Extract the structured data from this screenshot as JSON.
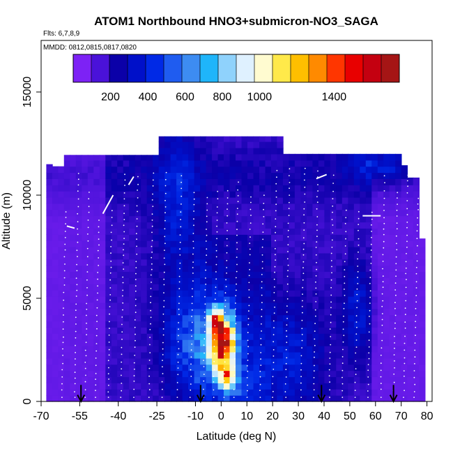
{
  "chart_data": {
    "type": "heatmap",
    "title": "ATOM1 Northbound HNO3+submicron-NO3_SAGA",
    "subtitle_flights": "Flts: 6,7,8,9",
    "subtitle_dates": "MMDD: 0812,0815,0817,0820",
    "xlabel": "Latitude (deg N)",
    "ylabel": "Altitude (m)",
    "xlim": [
      -70,
      82
    ],
    "ylim": [
      0,
      17500
    ],
    "x_ticks": [
      -70,
      -55,
      -40,
      -25,
      -10,
      0,
      10,
      20,
      30,
      40,
      50,
      60,
      70,
      80
    ],
    "x_tick_labels": [
      "-70",
      "-55",
      "-40",
      "-25",
      "-10",
      "0",
      "10",
      "20",
      "30",
      "40",
      "50",
      "60",
      "70",
      "80"
    ],
    "y_ticks": [
      0,
      5000,
      10000,
      15000
    ],
    "y_tick_labels": [
      "0",
      "5000",
      "10000",
      "15000"
    ],
    "colorbar": {
      "range": [
        0,
        1750
      ],
      "tick_values": [
        200,
        400,
        600,
        800,
        1000,
        1400
      ],
      "tick_labels": [
        "200",
        "400",
        "600",
        "800",
        "1000",
        "1400"
      ],
      "colors": [
        "#7d22f5",
        "#4a12d9",
        "#0b00a8",
        "#0010c9",
        "#0029e6",
        "#1f5cf0",
        "#3d8cf2",
        "#1fb5fa",
        "#8fd2fc",
        "#dff1ff",
        "#fffbd0",
        "#ffe94a",
        "#ffbf00",
        "#ff8a00",
        "#ff3600",
        "#e80000",
        "#c40010",
        "#a51515"
      ]
    },
    "arrow_latitudes": [
      -54.5,
      -8,
      39,
      67
    ],
    "profile_latitudes": [
      -62,
      -57,
      -53,
      -49,
      -44,
      -39,
      -34,
      -28,
      -23,
      -17,
      -12,
      -7,
      -3,
      1,
      5,
      10,
      15,
      20,
      25,
      31,
      36,
      42,
      47,
      52,
      57,
      62,
      67,
      71,
      75
    ],
    "profile_tops_m": [
      9500,
      11300,
      10300,
      9000,
      9600,
      11200,
      10900,
      11300,
      11400,
      11200,
      10200,
      10100,
      10300,
      10500,
      10800,
      10200,
      10200,
      11300,
      11300,
      11300,
      11200,
      11100,
      9500,
      9400,
      9300,
      11200,
      10400,
      11000,
      10000
    ],
    "column_tops_m": [
      {
        "lat_range": [
          -68,
          -65
        ],
        "top_m": 11500
      },
      {
        "lat_range": [
          -65,
          -60
        ],
        "top_m": 11400
      },
      {
        "lat_range": [
          -60,
          -25
        ],
        "top_m": 11950
      },
      {
        "lat_range": [
          -25,
          25
        ],
        "top_m": 12850
      },
      {
        "lat_range": [
          25,
          70
        ],
        "top_m": 12000
      },
      {
        "lat_range": [
          70,
          73
        ],
        "top_m": 11450
      },
      {
        "lat_range": [
          73,
          77
        ],
        "top_m": 10850
      },
      {
        "lat_range": [
          77,
          80
        ],
        "top_m": 7900
      }
    ],
    "peak_region": {
      "lat_range": [
        -5,
        8
      ],
      "alt_range_m": [
        300,
        5200
      ],
      "max_value": 1650
    }
  }
}
